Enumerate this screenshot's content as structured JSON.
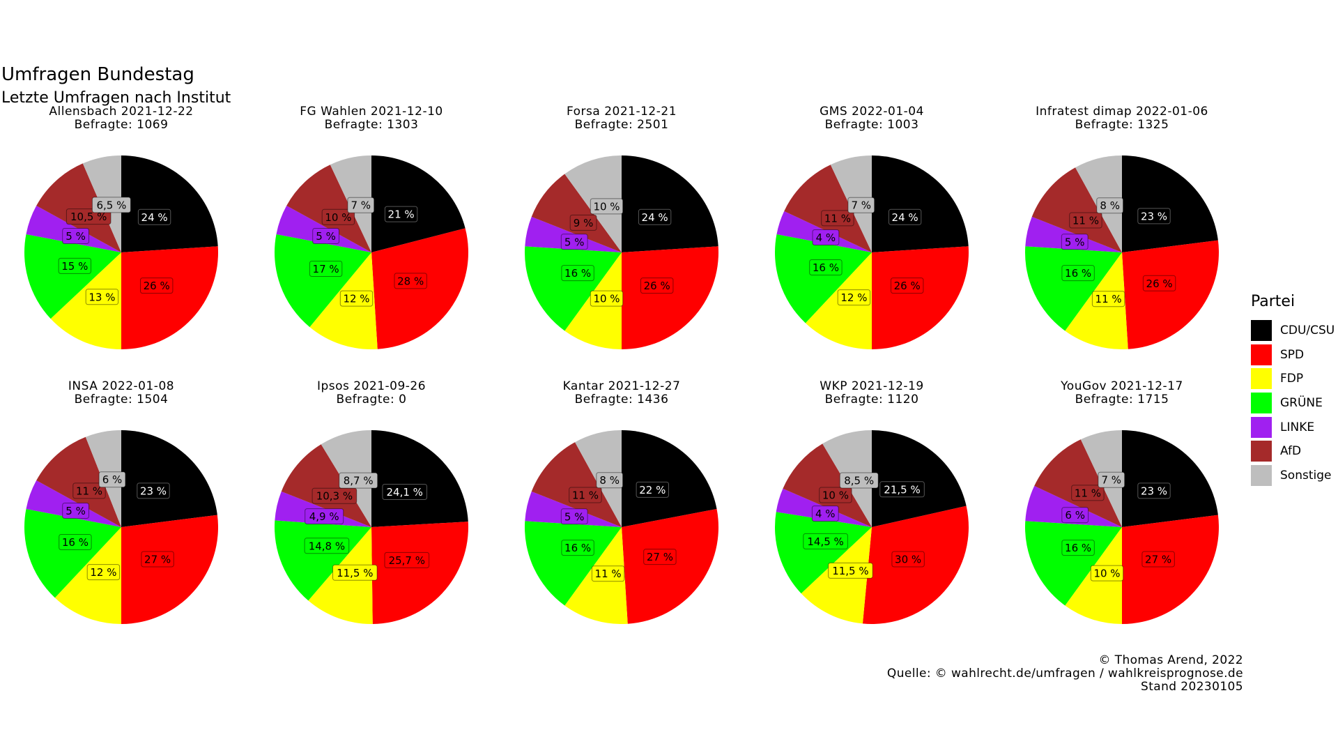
{
  "title": "Umfragen Bundestag",
  "subtitle": "Letzte Umfragen nach Institut",
  "legend": {
    "title": "Partei",
    "items": [
      {
        "label": "CDU/CSU",
        "color": "#000000"
      },
      {
        "label": "SPD",
        "color": "#ff0000"
      },
      {
        "label": "FDP",
        "color": "#ffff00"
      },
      {
        "label": "GRÜNE",
        "color": "#00ff00"
      },
      {
        "label": "LINKE",
        "color": "#a020f0"
      },
      {
        "label": "AfD",
        "color": "#a52a2a"
      },
      {
        "label": "Sonstige",
        "color": "#bebebe"
      }
    ]
  },
  "caption": {
    "line1": "© Thomas Arend, 2022",
    "line2": "Quelle: © wahlrecht.de/umfragen / wahlkreisprognose.de",
    "line3": "Stand 20230105"
  },
  "chart_data": [
    {
      "type": "pie",
      "title": "Allensbach 2021-12-22",
      "subtitle": "Befragte: 1069",
      "categories": [
        "CDU/CSU",
        "SPD",
        "FDP",
        "GRÜNE",
        "LINKE",
        "AfD",
        "Sonstige"
      ],
      "values": [
        24,
        26,
        13,
        15,
        5,
        10.5,
        6.5
      ],
      "labels": [
        "24 %",
        "26 %",
        "13 %",
        "15 %",
        "5 %",
        "10,5 %",
        "6,5 %"
      ]
    },
    {
      "type": "pie",
      "title": "FG Wahlen 2021-12-10",
      "subtitle": "Befragte: 1303",
      "categories": [
        "CDU/CSU",
        "SPD",
        "FDP",
        "GRÜNE",
        "LINKE",
        "AfD",
        "Sonstige"
      ],
      "values": [
        21,
        28,
        12,
        17,
        5,
        10,
        7
      ],
      "labels": [
        "21 %",
        "28 %",
        "12 %",
        "17 %",
        "5 %",
        "10 %",
        "7 %"
      ]
    },
    {
      "type": "pie",
      "title": "Forsa 2021-12-21",
      "subtitle": "Befragte: 2501",
      "categories": [
        "CDU/CSU",
        "SPD",
        "FDP",
        "GRÜNE",
        "LINKE",
        "AfD",
        "Sonstige"
      ],
      "values": [
        24,
        26,
        10,
        16,
        5,
        9,
        10
      ],
      "labels": [
        "24 %",
        "26 %",
        "10 %",
        "16 %",
        "5 %",
        "9 %",
        "10 %"
      ]
    },
    {
      "type": "pie",
      "title": "GMS 2022-01-04",
      "subtitle": "Befragte: 1003",
      "categories": [
        "CDU/CSU",
        "SPD",
        "FDP",
        "GRÜNE",
        "LINKE",
        "AfD",
        "Sonstige"
      ],
      "values": [
        24,
        26,
        12,
        16,
        4,
        11,
        7
      ],
      "labels": [
        "24 %",
        "26 %",
        "12 %",
        "16 %",
        "4 %",
        "11 %",
        "7 %"
      ]
    },
    {
      "type": "pie",
      "title": "Infratest dimap 2022-01-06",
      "subtitle": "Befragte: 1325",
      "categories": [
        "CDU/CSU",
        "SPD",
        "FDP",
        "GRÜNE",
        "LINKE",
        "AfD",
        "Sonstige"
      ],
      "values": [
        23,
        26,
        11,
        16,
        5,
        11,
        8
      ],
      "labels": [
        "23 %",
        "26 %",
        "11 %",
        "16 %",
        "5 %",
        "11 %",
        "8 %"
      ]
    },
    {
      "type": "pie",
      "title": "INSA 2022-01-08",
      "subtitle": "Befragte: 1504",
      "categories": [
        "CDU/CSU",
        "SPD",
        "FDP",
        "GRÜNE",
        "LINKE",
        "AfD",
        "Sonstige"
      ],
      "values": [
        23,
        27,
        12,
        16,
        5,
        11,
        6
      ],
      "labels": [
        "23 %",
        "27 %",
        "12 %",
        "16 %",
        "5 %",
        "11 %",
        "6 %"
      ]
    },
    {
      "type": "pie",
      "title": "Ipsos 2021-09-26",
      "subtitle": "Befragte: 0",
      "categories": [
        "CDU/CSU",
        "SPD",
        "FDP",
        "GRÜNE",
        "LINKE",
        "AfD",
        "Sonstige"
      ],
      "values": [
        24.1,
        25.7,
        11.5,
        14.8,
        4.9,
        10.3,
        8.7
      ],
      "labels": [
        "24,1 %",
        "25,7 %",
        "11,5 %",
        "14,8 %",
        "4,9 %",
        "10,3 %",
        "8,7 %"
      ]
    },
    {
      "type": "pie",
      "title": "Kantar 2021-12-27",
      "subtitle": "Befragte: 1436",
      "categories": [
        "CDU/CSU",
        "SPD",
        "FDP",
        "GRÜNE",
        "LINKE",
        "AfD",
        "Sonstige"
      ],
      "values": [
        22,
        27,
        11,
        16,
        5,
        11,
        8
      ],
      "labels": [
        "22 %",
        "27 %",
        "11 %",
        "16 %",
        "5 %",
        "11 %",
        "8 %"
      ]
    },
    {
      "type": "pie",
      "title": "WKP 2021-12-19",
      "subtitle": "Befragte: 1120",
      "categories": [
        "CDU/CSU",
        "SPD",
        "FDP",
        "GRÜNE",
        "LINKE",
        "AfD",
        "Sonstige"
      ],
      "values": [
        21.5,
        30,
        11.5,
        14.5,
        4,
        10,
        8.5
      ],
      "labels": [
        "21,5 %",
        "30 %",
        "11,5 %",
        "14,5 %",
        "4 %",
        "10 %",
        "8,5 %"
      ]
    },
    {
      "type": "pie",
      "title": "YouGov 2021-12-17",
      "subtitle": "Befragte: 1715",
      "categories": [
        "CDU/CSU",
        "SPD",
        "FDP",
        "GRÜNE",
        "LINKE",
        "AfD",
        "Sonstige"
      ],
      "values": [
        23,
        27,
        10,
        16,
        6,
        11,
        7
      ],
      "labels": [
        "23 %",
        "27 %",
        "10 %",
        "16 %",
        "6 %",
        "11 %",
        "7 %"
      ]
    }
  ]
}
